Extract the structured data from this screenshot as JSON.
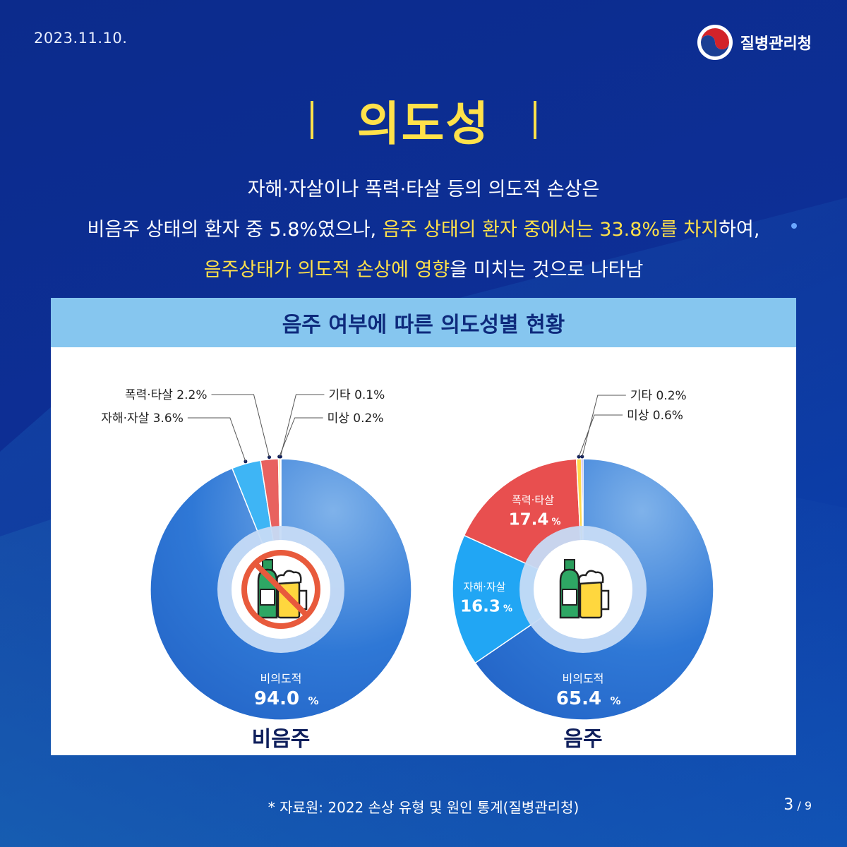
{
  "header": {
    "date": "2023.11.10.",
    "org_name": "질병관리청"
  },
  "title": "의도성",
  "description": {
    "line1": "자해·자살이나 폭력·타살 등의 의도적 손상은",
    "line2_a": "비음주 상태의 환자 중 5.8%였으나, ",
    "line2_b": "음주 상태의 환자 중에서는 33.8%를 차지",
    "line2_c": "하여,",
    "line3_a": "음주상태가 의도적 손상에 영향",
    "line3_b": "을 미치는 것으로 나타남"
  },
  "panel_title": "음주 여부에 따른 의도성별 현황",
  "chart_data": [
    {
      "type": "pie",
      "title": "비음주",
      "icon": "no-drinking-icon",
      "slices": [
        {
          "label": "비의도적",
          "value": 94.0,
          "display": "94.0",
          "color": "#2f78d6"
        },
        {
          "label": "자해·자살",
          "value": 3.6,
          "display": "3.6%",
          "color": "#3eb5f5"
        },
        {
          "label": "폭력·타살",
          "value": 2.2,
          "display": "2.2%",
          "color": "#e8625f"
        },
        {
          "label": "미상",
          "value": 0.2,
          "display": "0.2%",
          "color": "#ffd84a"
        },
        {
          "label": "기타",
          "value": 0.1,
          "display": "0.1%",
          "color": "#7b56c8"
        }
      ]
    },
    {
      "type": "pie",
      "title": "음주",
      "icon": "drinking-icon",
      "slices": [
        {
          "label": "비의도적",
          "value": 65.4,
          "display": "65.4",
          "color": "#2f78d6"
        },
        {
          "label": "자해·자살",
          "value": 16.3,
          "display": "16.3",
          "color": "#21a6f4"
        },
        {
          "label": "폭력·타살",
          "value": 17.4,
          "display": "17.4",
          "color": "#e84f4f"
        },
        {
          "label": "미상",
          "value": 0.6,
          "display": "0.6%",
          "color": "#ffd84a"
        },
        {
          "label": "기타",
          "value": 0.2,
          "display": "0.2%",
          "color": "#7b56c8"
        }
      ]
    }
  ],
  "footer": {
    "source": "* 자료원: 2022 손상 유형 및 원인 통계(질병관리청)",
    "page_current": "3",
    "page_sep": " / ",
    "page_total": "9"
  }
}
